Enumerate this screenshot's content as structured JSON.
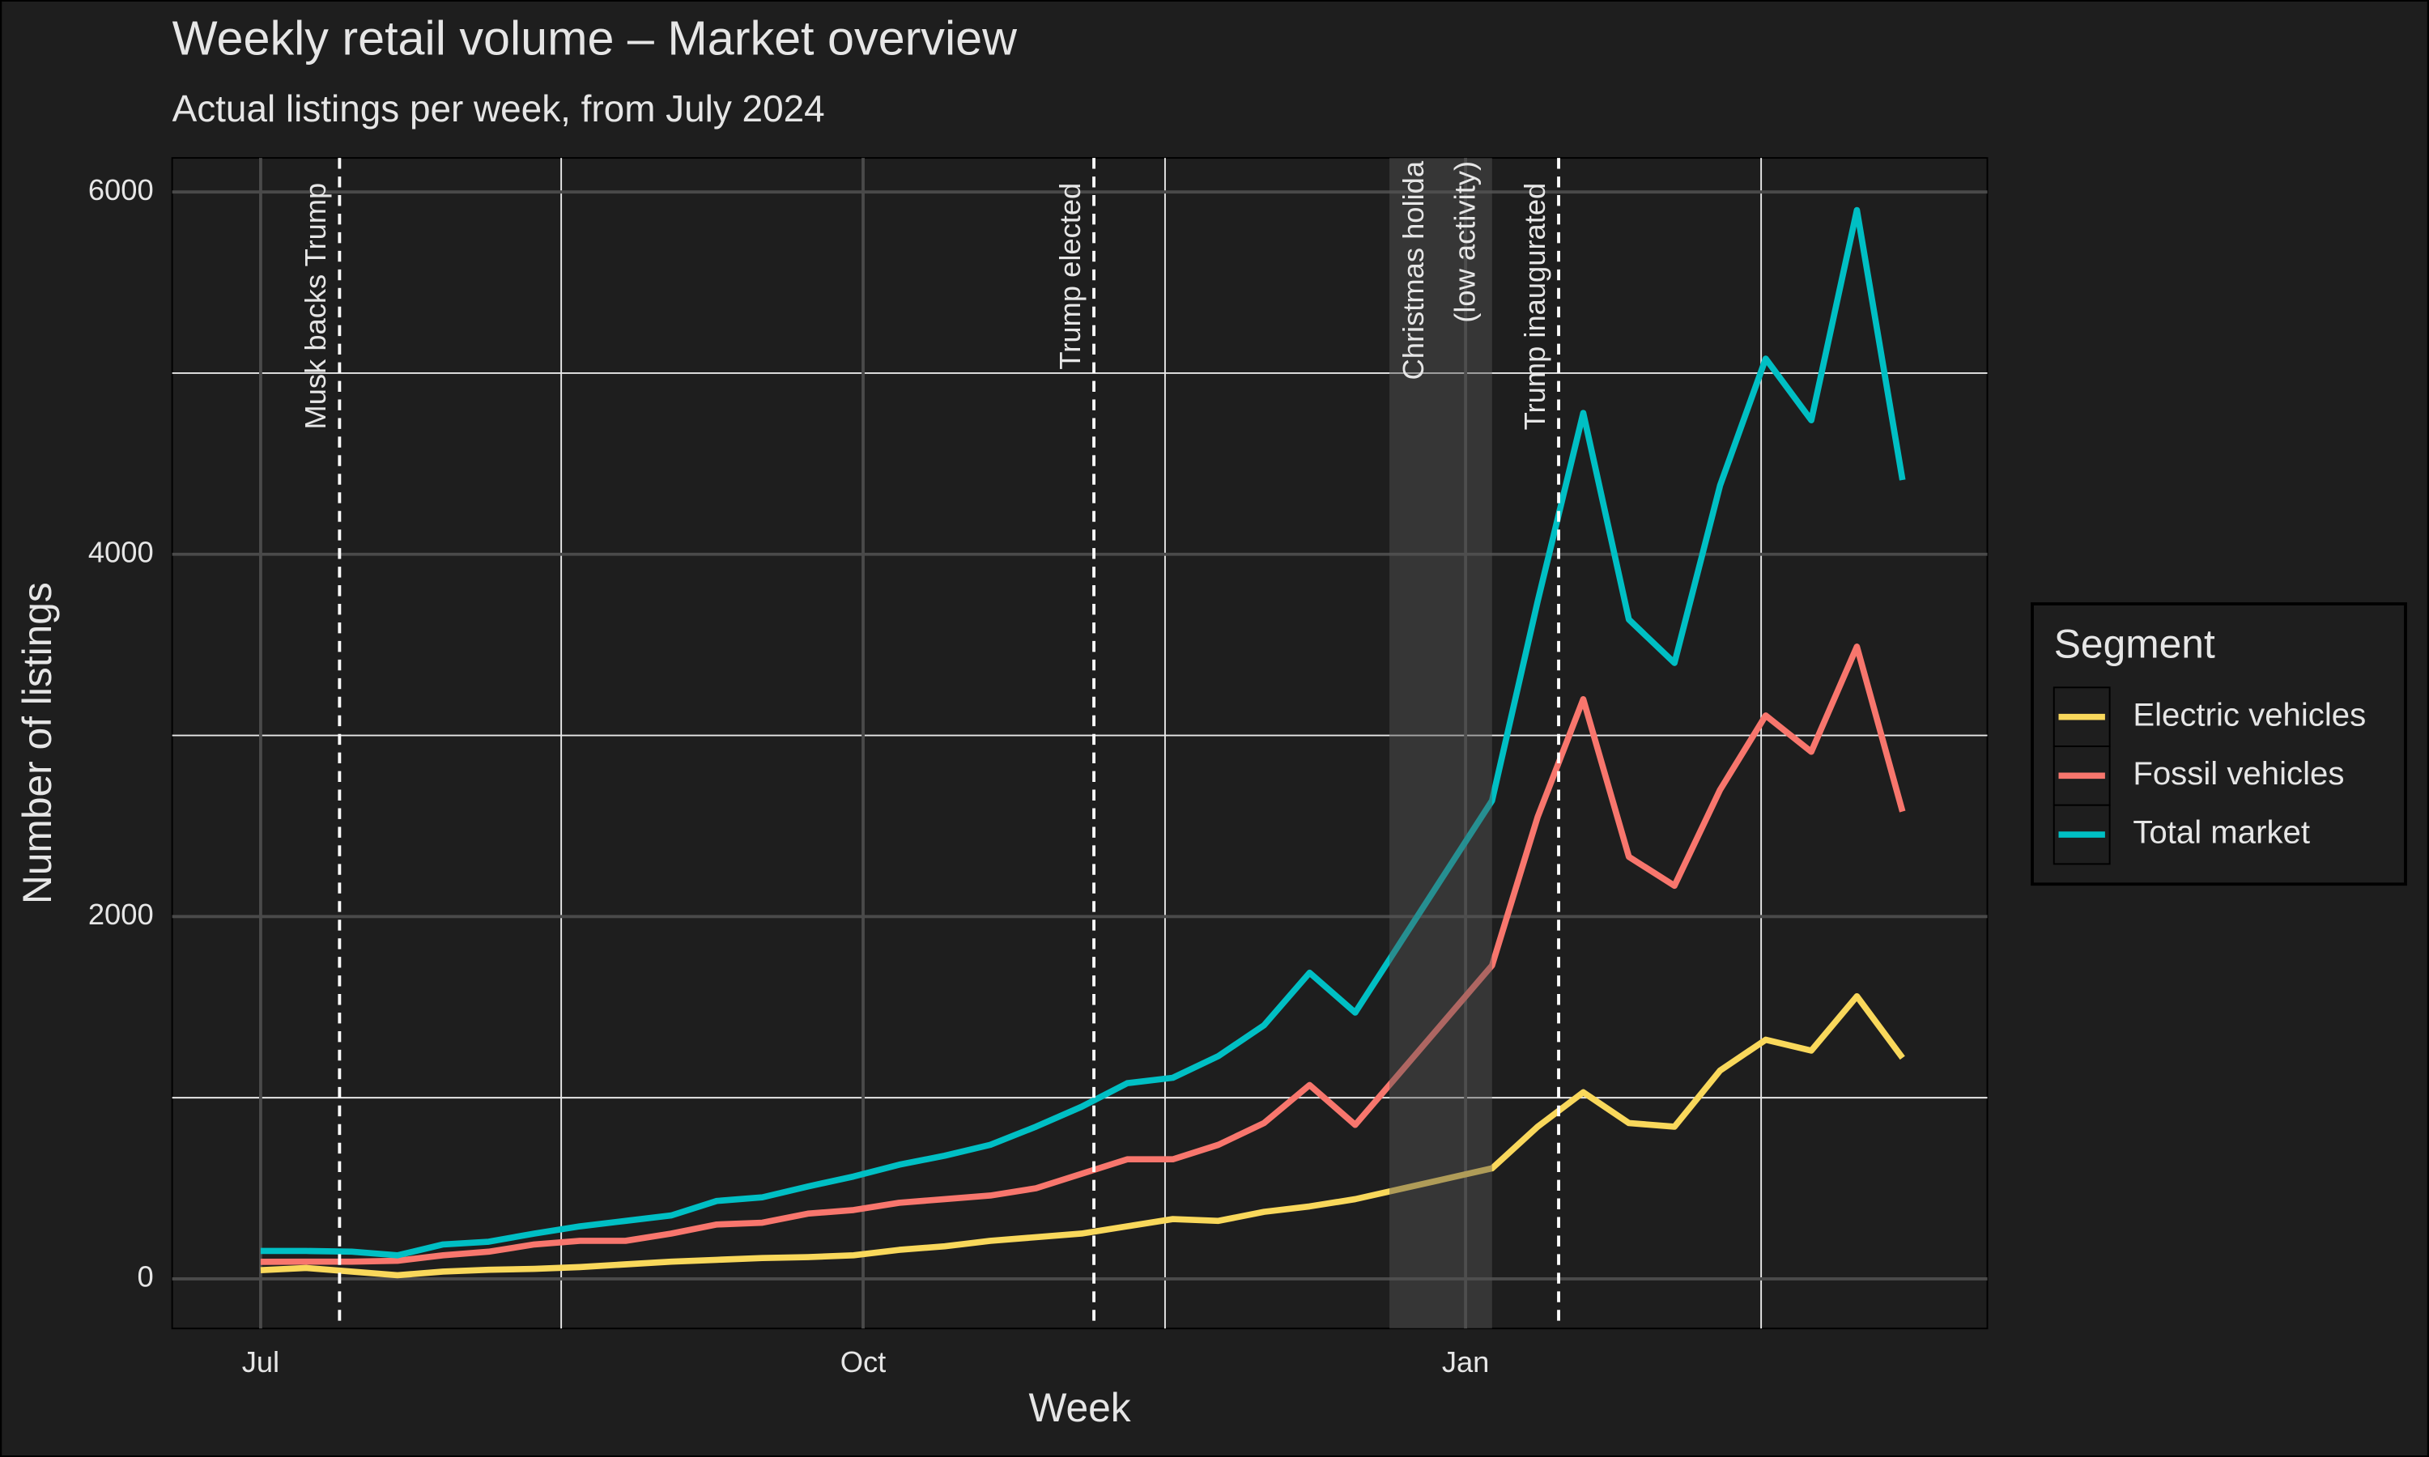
{
  "chart_data": {
    "type": "line",
    "title": "Weekly retail volume – Market overview",
    "subtitle": "Actual listings per week, from July 2024",
    "x_label": "Week",
    "y_label": "Number of listings",
    "x": [
      0,
      1,
      2,
      3,
      4,
      5,
      6,
      7,
      8,
      9,
      10,
      11,
      12,
      13,
      14,
      15,
      16,
      17,
      18,
      19,
      20,
      21,
      22,
      23,
      24,
      27,
      28,
      29,
      30,
      31,
      32,
      33,
      34,
      35,
      36
    ],
    "series": [
      {
        "name": "Electric vehicles",
        "color": "#f9d85b",
        "values": [
          48,
          60,
          40,
          20,
          40,
          50,
          55,
          65,
          80,
          95,
          105,
          115,
          120,
          130,
          160,
          180,
          210,
          230,
          250,
          290,
          330,
          320,
          370,
          400,
          440,
          610,
          840,
          1030,
          860,
          840,
          1150,
          1320,
          1260,
          1560,
          1220
        ]
      },
      {
        "name": "Fossil vehicles",
        "color": "#f8766d",
        "values": [
          94,
          95,
          95,
          100,
          130,
          150,
          190,
          210,
          210,
          250,
          300,
          310,
          360,
          380,
          420,
          440,
          460,
          500,
          580,
          660,
          660,
          740,
          860,
          1070,
          850,
          1730,
          2550,
          3200,
          2330,
          2170,
          2700,
          3110,
          2910,
          3490,
          2580
        ]
      },
      {
        "name": "Total market",
        "color": "#00bfc4",
        "values": [
          154,
          154,
          150,
          130,
          190,
          205,
          250,
          290,
          320,
          350,
          430,
          450,
          510,
          565,
          630,
          680,
          740,
          840,
          950,
          1080,
          1110,
          1230,
          1400,
          1690,
          1470,
          2640,
          3740,
          4780,
          3640,
          3400,
          4380,
          5080,
          4740,
          5900,
          4410
        ]
      }
    ],
    "xlim": [
      -1.94,
      37.86
    ],
    "ylim": [
      -274,
      6188
    ],
    "xticks": [
      {
        "value": 0,
        "label": "Jul"
      },
      {
        "value": 13.21,
        "label": "Oct"
      },
      {
        "value": 26.42,
        "label": "Jan"
      }
    ],
    "xminorticks": [
      6.59,
      19.83,
      32.9
    ],
    "yticks": [
      0,
      2000,
      4000,
      6000
    ],
    "yminorticks": [
      1000,
      3000,
      5000
    ],
    "grid": true,
    "legend_title": "Segment",
    "legend_position": "right",
    "events": [
      {
        "x": 1.73,
        "label": "Musk backs Trump"
      },
      {
        "x": 18.27,
        "label": "Trump elected"
      },
      {
        "x": 28.46,
        "label": "Trump inaugurated"
      }
    ],
    "shade": {
      "xmin": 24.75,
      "xmax": 27.0,
      "label": [
        "Christmas holida",
        "(low activity)"
      ]
    }
  }
}
